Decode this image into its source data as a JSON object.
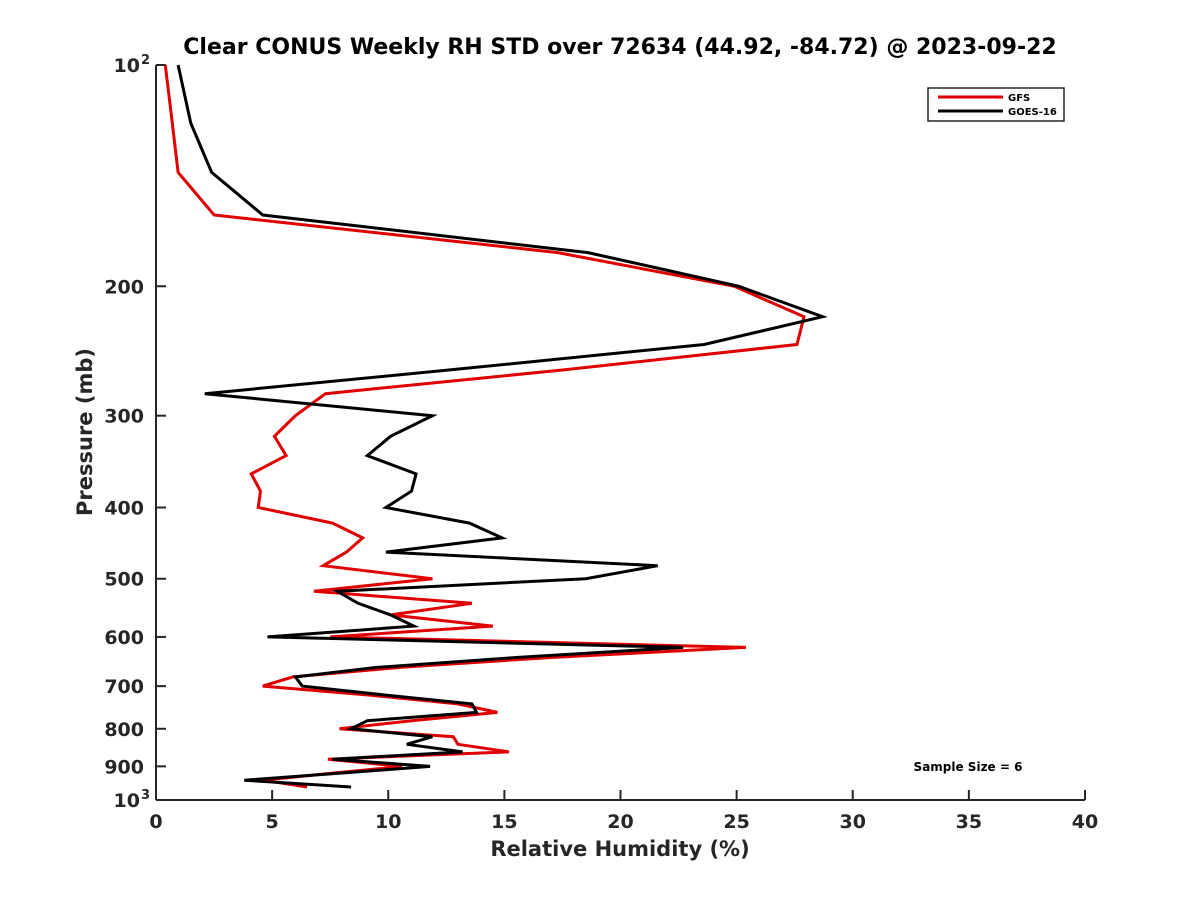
{
  "chart_data": {
    "type": "line",
    "title": "Clear CONUS Weekly RH STD over 72634 (44.92, -84.72) @ 2023-09-22",
    "xlabel": "Relative Humidity (%)",
    "ylabel": "Pressure (mb)",
    "xlim": [
      0,
      40
    ],
    "ylim": [
      100,
      1000
    ],
    "yscale": "log",
    "y_reversed": true,
    "grid": false,
    "xticks": [
      0,
      5,
      10,
      15,
      20,
      25,
      30,
      35,
      40
    ],
    "xtick_labels": [
      "0",
      "5",
      "10",
      "15",
      "20",
      "25",
      "30",
      "35",
      "40"
    ],
    "yticks": [
      100,
      200,
      300,
      400,
      500,
      600,
      700,
      800,
      900,
      1000
    ],
    "ytick_labels": [
      "10",
      "200",
      "300",
      "400",
      "500",
      "600",
      "700",
      "800",
      "900",
      "10"
    ],
    "ytick_exponents": [
      "2",
      "",
      "",
      "",
      "",
      "",
      "",
      "",
      "",
      "3"
    ],
    "legend_position": "top-right",
    "annotation": "Sample Size = 6",
    "pressure": [
      100,
      120,
      140,
      160,
      180,
      200,
      220,
      240,
      260,
      280,
      300,
      320,
      340,
      360,
      380,
      400,
      420,
      440,
      460,
      480,
      500,
      520,
      540,
      560,
      580,
      600,
      620,
      640,
      660,
      680,
      700,
      720,
      740,
      760,
      780,
      800,
      820,
      840,
      860,
      880,
      900,
      920,
      940,
      960
    ],
    "series": [
      {
        "name": "GFS",
        "color": "#e00000",
        "values": [
          0.4,
          0.7,
          0.95,
          2.5,
          17.3,
          24.9,
          27.9,
          27.6,
          17.5,
          7.3,
          6.0,
          5.1,
          5.6,
          4.1,
          4.5,
          4.4,
          7.6,
          8.9,
          8.2,
          7.2,
          11.9,
          6.8,
          13.6,
          10.1,
          14.5,
          7.5,
          25.4,
          17.0,
          10.5,
          5.9,
          4.6,
          9.2,
          13.0,
          14.7,
          11.0,
          7.9,
          12.8,
          13.0,
          15.2,
          7.4,
          10.6,
          7.5,
          4.6,
          6.5
        ]
      },
      {
        "name": "GOES-16",
        "color": "#000000",
        "values": [
          0.95,
          1.5,
          2.4,
          4.6,
          18.6,
          25.1,
          28.7,
          23.6,
          12.6,
          2.1,
          11.9,
          10.1,
          9.1,
          11.2,
          11.0,
          9.9,
          13.5,
          14.9,
          9.9,
          21.6,
          18.5,
          7.8,
          8.7,
          10.1,
          11.1,
          4.8,
          22.7,
          15.5,
          9.5,
          6.0,
          6.3,
          9.9,
          13.6,
          13.8,
          9.1,
          8.4,
          11.9,
          10.8,
          13.2,
          7.6,
          11.8,
          7.8,
          3.8,
          8.4
        ]
      }
    ]
  }
}
